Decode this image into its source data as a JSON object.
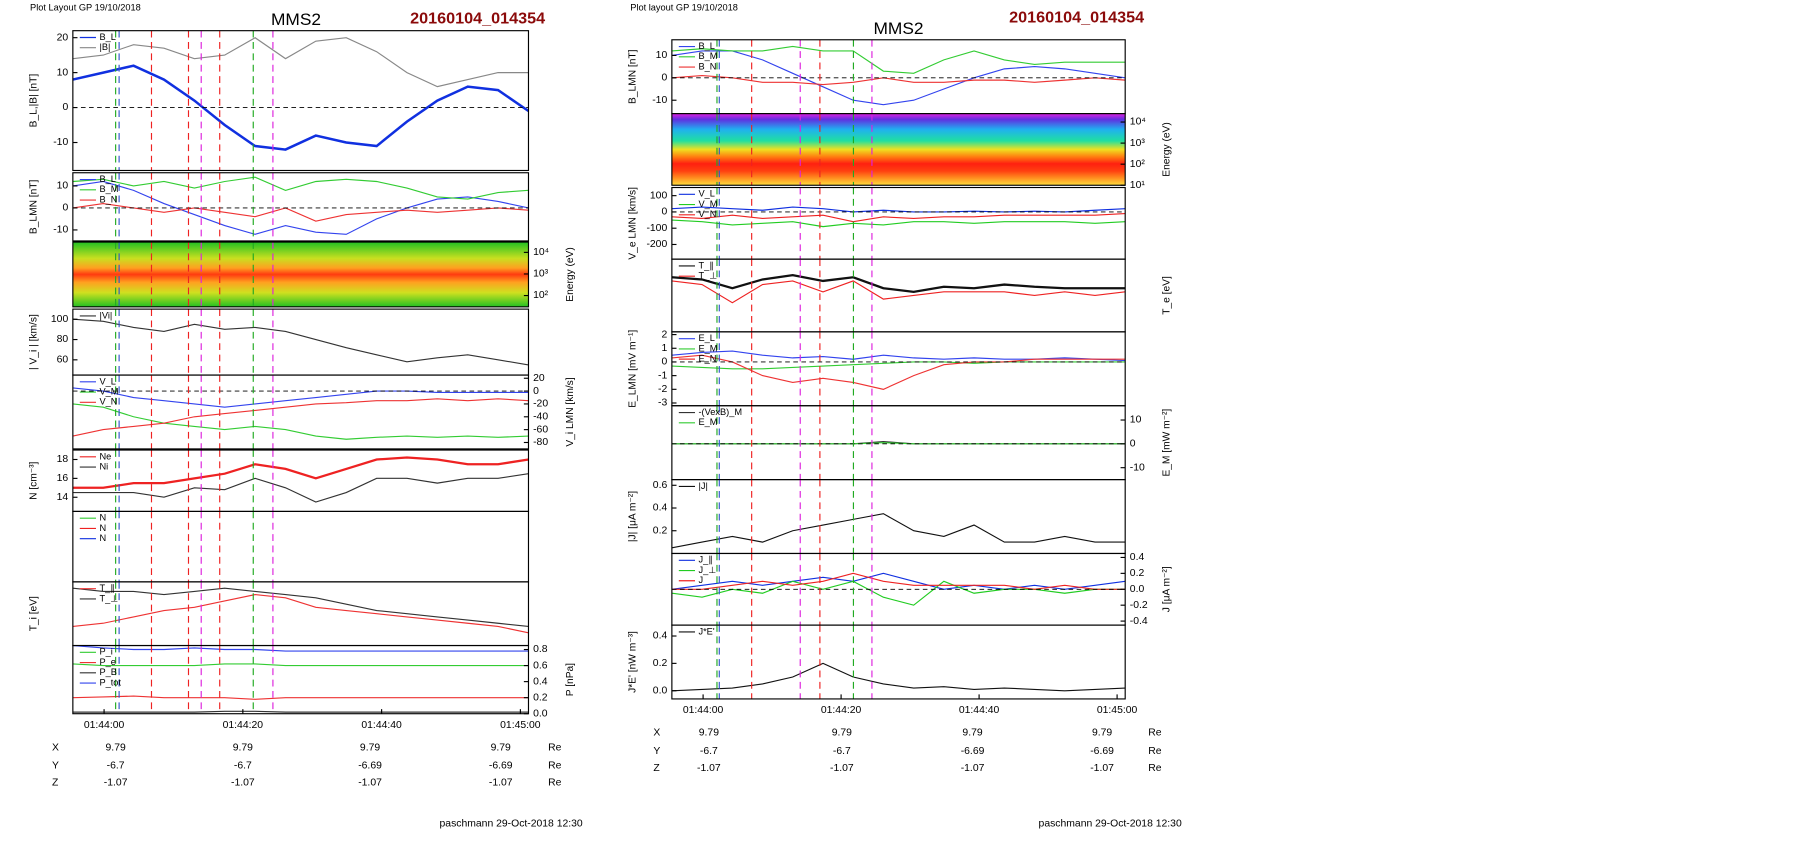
{
  "header": {
    "left": {
      "layout": "Plot Layout GP 19/10/2018",
      "spacecraft": "MMS2",
      "event": "20160104_014354",
      "footer": "paschmann 29-Oct-2018 12:30"
    },
    "right": {
      "layout": "Plot layout GP 19/10/2018",
      "spacecraft": "MMS2",
      "event": "20160104_014354",
      "footer": "paschmann 29-Oct-2018 12:30"
    }
  },
  "tables": {
    "left": [
      {
        "name": "X",
        "values": [
          9.79,
          9.79,
          9.79,
          9.79
        ],
        "unit": "Re"
      },
      {
        "name": "Y",
        "values": [
          -6.7,
          -6.7,
          -6.69,
          -6.69
        ],
        "unit": "Re"
      },
      {
        "name": "Z",
        "values": [
          -1.07,
          -1.07,
          -1.07,
          -1.07
        ],
        "unit": "Re"
      }
    ],
    "right": [
      {
        "name": "X",
        "values": [
          9.79,
          9.79,
          9.79,
          9.79
        ],
        "unit": "Re"
      },
      {
        "name": "Y",
        "values": [
          -6.7,
          -6.7,
          -6.69,
          -6.69
        ],
        "unit": "Re"
      },
      {
        "name": "Z",
        "values": [
          -1.07,
          -1.07,
          -1.07,
          -1.07
        ],
        "unit": "Re"
      }
    ]
  },
  "chart_data": [
    {
      "type": "line",
      "ylabel": "B_L,|B| [nT]",
      "ylim": [
        -18,
        22
      ],
      "yticks": [
        -10,
        0,
        10,
        20
      ],
      "zero_line": true,
      "series": [
        {
          "name": "B_L",
          "color": "#1030e0",
          "width": 2.2,
          "values": [
            8,
            10,
            12,
            8,
            2,
            -5,
            -11,
            -12,
            -8,
            -10,
            -11,
            -4,
            2,
            6,
            5,
            -1
          ]
        },
        {
          "name": "|B|",
          "color": "#888888",
          "values": [
            14,
            15,
            18,
            17,
            14,
            15,
            20,
            14,
            19,
            20,
            16,
            10,
            6,
            8,
            10,
            10
          ]
        }
      ]
    },
    {
      "type": "line",
      "ylabel": "B_LMN [nT]",
      "ylim": [
        -15,
        16
      ],
      "yticks": [
        -10,
        0,
        10
      ],
      "zero_line": true,
      "series": [
        {
          "name": "B_L",
          "color": "#3344ee",
          "values": [
            10,
            12,
            8,
            2,
            -3,
            -8,
            -12,
            -8,
            -11,
            -12,
            -5,
            0,
            4,
            5,
            3,
            0
          ]
        },
        {
          "name": "B_M",
          "color": "#33cc33",
          "values": [
            12,
            13,
            10,
            12,
            9,
            12,
            14,
            8,
            12,
            13,
            12,
            9,
            5,
            4,
            7,
            8
          ]
        },
        {
          "name": "B_N",
          "color": "#ee3333",
          "values": [
            0,
            2,
            0,
            -2,
            0,
            -2,
            -4,
            0,
            -6,
            -3,
            -2,
            -1,
            -2,
            -1,
            0,
            -1
          ]
        }
      ]
    },
    {
      "type": "spectrogram",
      "palette": "ion",
      "ylabel": "Energy (eV)",
      "y_axis": "right",
      "log": true,
      "ylim": [
        30,
        30000
      ],
      "yticks": [
        {
          "value": 100,
          "label": "10²"
        },
        {
          "value": 1000,
          "label": "10³"
        },
        {
          "value": 10000,
          "label": "10⁴"
        }
      ]
    },
    {
      "type": "line",
      "ylabel": "| V_i | [km/s]",
      "ylim": [
        45,
        110
      ],
      "yticks": [
        60,
        80,
        100
      ],
      "series": [
        {
          "name": "|Vi|",
          "color": "#333333",
          "values": [
            100,
            98,
            92,
            88,
            95,
            90,
            92,
            88,
            80,
            72,
            65,
            58,
            62,
            65,
            60,
            55
          ]
        }
      ]
    },
    {
      "type": "line",
      "ylabel": "V_i LMN [km/s]",
      "y_axis": "right",
      "ylim": [
        -90,
        25
      ],
      "yticks": [
        -80,
        -60,
        -40,
        -20,
        0,
        20
      ],
      "zero_line": true,
      "series": [
        {
          "name": "V_L",
          "color": "#3344ee",
          "values": [
            5,
            0,
            -10,
            -15,
            -20,
            -25,
            -20,
            -15,
            -10,
            -5,
            0,
            0,
            -2,
            -2,
            -2,
            -2
          ]
        },
        {
          "name": "V_M",
          "color": "#33cc33",
          "values": [
            -20,
            -25,
            -40,
            -50,
            -55,
            -60,
            -55,
            -60,
            -70,
            -75,
            -72,
            -70,
            -72,
            -70,
            -72,
            -70
          ]
        },
        {
          "name": "V_N",
          "color": "#ee3333",
          "values": [
            -70,
            -60,
            -55,
            -50,
            -40,
            -35,
            -30,
            -25,
            -20,
            -18,
            -15,
            -15,
            -12,
            -15,
            -12,
            -15
          ]
        }
      ]
    },
    {
      "type": "line",
      "ylabel": "N [cm⁻³]",
      "ylim": [
        12.5,
        19
      ],
      "yticks": [
        14,
        16,
        18
      ],
      "series": [
        {
          "name": "Ne",
          "color": "#ee2222",
          "width": 2,
          "values": [
            15,
            15,
            15.5,
            15.5,
            16,
            16.5,
            17.5,
            17,
            16,
            17,
            18,
            18.2,
            18,
            17.5,
            17.5,
            18
          ]
        },
        {
          "name": "Ni",
          "color": "#333333",
          "values": [
            14.5,
            14.5,
            14.5,
            14,
            15,
            14.8,
            16,
            15,
            13.5,
            14.5,
            16,
            16,
            15.5,
            16,
            16,
            16.5
          ]
        }
      ]
    },
    {
      "type": "empty",
      "series": [
        {
          "name": "N",
          "color": "#33cc33"
        },
        {
          "name": "N",
          "color": "#ee2222"
        },
        {
          "name": "N",
          "color": "#1030e0"
        }
      ]
    },
    {
      "type": "line",
      "ylabel": "T_i [eV]",
      "ylim": [
        0,
        1
      ],
      "series": [
        {
          "name": "T_∥",
          "color": "#ee3333",
          "values": [
            0.3,
            0.35,
            0.45,
            0.55,
            0.6,
            0.7,
            0.8,
            0.75,
            0.6,
            0.55,
            0.5,
            0.45,
            0.4,
            0.35,
            0.3,
            0.2
          ]
        },
        {
          "name": "T_⊥",
          "color": "#333333",
          "values": [
            0.9,
            0.85,
            0.85,
            0.8,
            0.85,
            0.9,
            0.85,
            0.8,
            0.75,
            0.65,
            0.55,
            0.5,
            0.45,
            0.4,
            0.35,
            0.3
          ]
        }
      ]
    },
    {
      "type": "line",
      "ylabel": "P [nPa]",
      "y_axis": "right",
      "ylim": [
        0,
        0.85
      ],
      "yticks": [
        {
          "value": 0,
          "label": "0.0"
        },
        0.2,
        0.4,
        0.6,
        0.8
      ],
      "time_labels": [
        "01:44:00",
        "01:44:20",
        "01:44:40",
        "01:45:00"
      ],
      "series": [
        {
          "name": "P_i",
          "color": "#33cc33",
          "values": [
            0.62,
            0.6,
            0.6,
            0.6,
            0.6,
            0.62,
            0.62,
            0.6,
            0.6,
            0.6,
            0.6,
            0.6,
            0.6,
            0.6,
            0.6,
            0.6
          ]
        },
        {
          "name": "P_e",
          "color": "#ee3333",
          "values": [
            0.2,
            0.21,
            0.22,
            0.2,
            0.2,
            0.2,
            0.18,
            0.2,
            0.2,
            0.2,
            0.2,
            0.2,
            0.2,
            0.2,
            0.2,
            0.2
          ]
        },
        {
          "name": "P_B",
          "color": "#333333",
          "values": [
            0.02,
            0.02,
            0.02,
            0.02,
            0.02,
            0.03,
            0.03,
            0.02,
            0.02,
            0.02,
            0.02,
            0.02,
            0.02,
            0.02,
            0.02,
            0.02
          ]
        },
        {
          "name": "P_tot",
          "color": "#3344ee",
          "values": [
            0.85,
            0.82,
            0.8,
            0.8,
            0.82,
            0.8,
            0.8,
            0.78,
            0.78,
            0.78,
            0.78,
            0.78,
            0.78,
            0.78,
            0.78,
            0.78
          ]
        }
      ]
    },
    {
      "type": "line",
      "ylabel": "B_LMN [nT]",
      "ylim": [
        -16,
        17
      ],
      "yticks": [
        -10,
        0,
        10
      ],
      "zero_line": true,
      "series": [
        {
          "name": "B_L",
          "color": "#3344ee",
          "values": [
            10,
            12,
            12,
            8,
            2,
            -4,
            -10,
            -12,
            -10,
            -5,
            0,
            4,
            5,
            4,
            2,
            0
          ]
        },
        {
          "name": "B_M",
          "color": "#33cc33",
          "values": [
            12,
            13,
            12,
            12,
            14,
            12,
            12,
            3,
            2,
            8,
            12,
            8,
            6,
            7,
            7,
            7
          ]
        },
        {
          "name": "B_N",
          "color": "#ee3333",
          "values": [
            0,
            1,
            0,
            -2,
            -2,
            -3,
            -2,
            0,
            -2,
            -2,
            -1,
            -1,
            -2,
            -1,
            0,
            -1
          ]
        }
      ]
    },
    {
      "type": "spectrogram",
      "palette": "electron",
      "ylabel": "Energy (eV)",
      "y_axis": "right",
      "log": true,
      "ylim": [
        10,
        25000
      ],
      "yticks": [
        {
          "value": 10,
          "label": "10¹"
        },
        {
          "value": 100,
          "label": "10²"
        },
        {
          "value": 1000,
          "label": "10³"
        },
        {
          "value": 10000,
          "label": "10⁴"
        }
      ]
    },
    {
      "type": "line",
      "ylabel": "V_e LMN [km/s]",
      "ylim": [
        -290,
        150
      ],
      "yticks": [
        -200,
        -100,
        0,
        100
      ],
      "zero_line": true,
      "series": [
        {
          "name": "V_L",
          "color": "#1030e0",
          "values": [
            20,
            30,
            20,
            10,
            30,
            20,
            0,
            10,
            0,
            0,
            5,
            0,
            5,
            0,
            10,
            20
          ]
        },
        {
          "name": "V_M",
          "color": "#22cc22",
          "values": [
            -50,
            -60,
            -80,
            -70,
            -60,
            -90,
            -70,
            -80,
            -60,
            -60,
            -70,
            -60,
            -60,
            -60,
            -70,
            -60
          ]
        },
        {
          "name": "V_N",
          "color": "#ee2222",
          "values": [
            -30,
            -40,
            -20,
            -40,
            -30,
            -20,
            -60,
            -30,
            -40,
            -30,
            -30,
            -20,
            -20,
            -20,
            -20,
            -10
          ]
        }
      ]
    },
    {
      "type": "line",
      "ylabel": "T_e [eV]",
      "y_axis": "right",
      "ylim": [
        0,
        1
      ],
      "series": [
        {
          "name": "T_∥",
          "color": "#111111",
          "width": 2,
          "values": [
            0.75,
            0.72,
            0.6,
            0.72,
            0.78,
            0.7,
            0.75,
            0.6,
            0.55,
            0.62,
            0.6,
            0.65,
            0.62,
            0.6,
            0.6,
            0.6
          ]
        },
        {
          "name": "T_⊥",
          "color": "#ee2222",
          "values": [
            0.7,
            0.65,
            0.4,
            0.65,
            0.7,
            0.55,
            0.7,
            0.45,
            0.5,
            0.55,
            0.55,
            0.55,
            0.5,
            0.55,
            0.5,
            0.55
          ]
        }
      ]
    },
    {
      "type": "line",
      "ylabel": "E_LMN [mV m⁻¹]",
      "ylim": [
        -3.2,
        2.2
      ],
      "yticks": [
        -3,
        -2,
        -1,
        0,
        1,
        2
      ],
      "zero_line": true,
      "series": [
        {
          "name": "E_L",
          "color": "#3344ee",
          "values": [
            0.5,
            0.7,
            0.8,
            0.5,
            0.3,
            0.4,
            0.2,
            0.5,
            0.3,
            0.2,
            0.3,
            0.2,
            0.2,
            0.3,
            0.2,
            0.1
          ]
        },
        {
          "name": "E_M",
          "color": "#33cc33",
          "values": [
            -0.3,
            -0.4,
            -0.5,
            -0.5,
            -0.4,
            -0.3,
            -0.2,
            -0.1,
            0,
            0,
            -0.1,
            0,
            0,
            0,
            0,
            0
          ]
        },
        {
          "name": "E_N",
          "color": "#ee3333",
          "values": [
            0.3,
            0.5,
            0,
            -1,
            -1.5,
            -1.2,
            -1.5,
            -2,
            -1,
            -0.2,
            0,
            0,
            0.2,
            0.2,
            0.2,
            0.2
          ]
        }
      ]
    },
    {
      "type": "line",
      "ylabel": "E_M [mW m⁻²]",
      "y_axis": "right",
      "ylim": [
        -15,
        16
      ],
      "yticks": [
        -10,
        0,
        10
      ],
      "zero_line": true,
      "series": [
        {
          "name": "-(VexB)_M",
          "color": "#333333",
          "values": [
            0,
            0,
            0,
            0,
            0,
            0,
            0,
            1,
            0,
            0,
            0,
            0,
            0,
            0,
            0,
            0
          ]
        },
        {
          "name": "E_M",
          "color": "#33cc33",
          "values": [
            0,
            0,
            0,
            0,
            0,
            0,
            0,
            0.5,
            0,
            0,
            0,
            0,
            0,
            0,
            0,
            0
          ]
        }
      ]
    },
    {
      "type": "line",
      "ylabel": "|J| [μA m⁻²]",
      "ylim": [
        0,
        0.65
      ],
      "yticks": [
        0.2,
        0.4,
        0.6
      ],
      "series": [
        {
          "name": "|J|",
          "color": "#111111",
          "values": [
            0.05,
            0.1,
            0.15,
            0.1,
            0.2,
            0.25,
            0.3,
            0.35,
            0.2,
            0.15,
            0.25,
            0.1,
            0.1,
            0.15,
            0.1,
            0.1
          ]
        }
      ]
    },
    {
      "type": "line",
      "ylabel": "J [μA m⁻²]",
      "y_axis": "right",
      "ylim": [
        -0.45,
        0.45
      ],
      "yticks": [
        -0.4,
        -0.2,
        {
          "value": 0,
          "label": "0.0"
        },
        0.2,
        0.4
      ],
      "zero_line": true,
      "series": [
        {
          "name": "J_∥",
          "color": "#1030e0",
          "values": [
            0,
            0.05,
            0.1,
            0.05,
            0.1,
            0.15,
            0.1,
            0.2,
            0.1,
            0,
            0.05,
            0,
            0.05,
            0,
            0.05,
            0.1
          ]
        },
        {
          "name": "J_⊥",
          "color": "#22cc22",
          "values": [
            -0.05,
            -0.1,
            0,
            -0.05,
            0.1,
            0,
            0.1,
            -0.1,
            -0.2,
            0.1,
            -0.05,
            0,
            0,
            -0.05,
            0,
            0
          ]
        },
        {
          "name": "J",
          "color": "#ee2222",
          "values": [
            0,
            0,
            0.05,
            0.1,
            0.05,
            0.1,
            0.2,
            0.1,
            0.05,
            0.05,
            0.05,
            0.05,
            0,
            0.05,
            0,
            0
          ]
        }
      ]
    },
    {
      "type": "line",
      "ylabel": "J*E' [nW m⁻³]",
      "ylim": [
        -0.06,
        0.48
      ],
      "yticks": [
        {
          "value": 0,
          "label": "0.0"
        },
        0.2,
        0.4
      ],
      "time_labels": [
        "01:44:00",
        "01:44:20",
        "01:44:40",
        "01:45:00"
      ],
      "series": [
        {
          "name": "J*E'",
          "color": "#111111",
          "values": [
            0,
            0.01,
            0.02,
            0.05,
            0.1,
            0.2,
            0.1,
            0.05,
            0.02,
            0.03,
            0.01,
            0.02,
            0.01,
            0,
            0.01,
            0.02
          ]
        }
      ]
    }
  ]
}
